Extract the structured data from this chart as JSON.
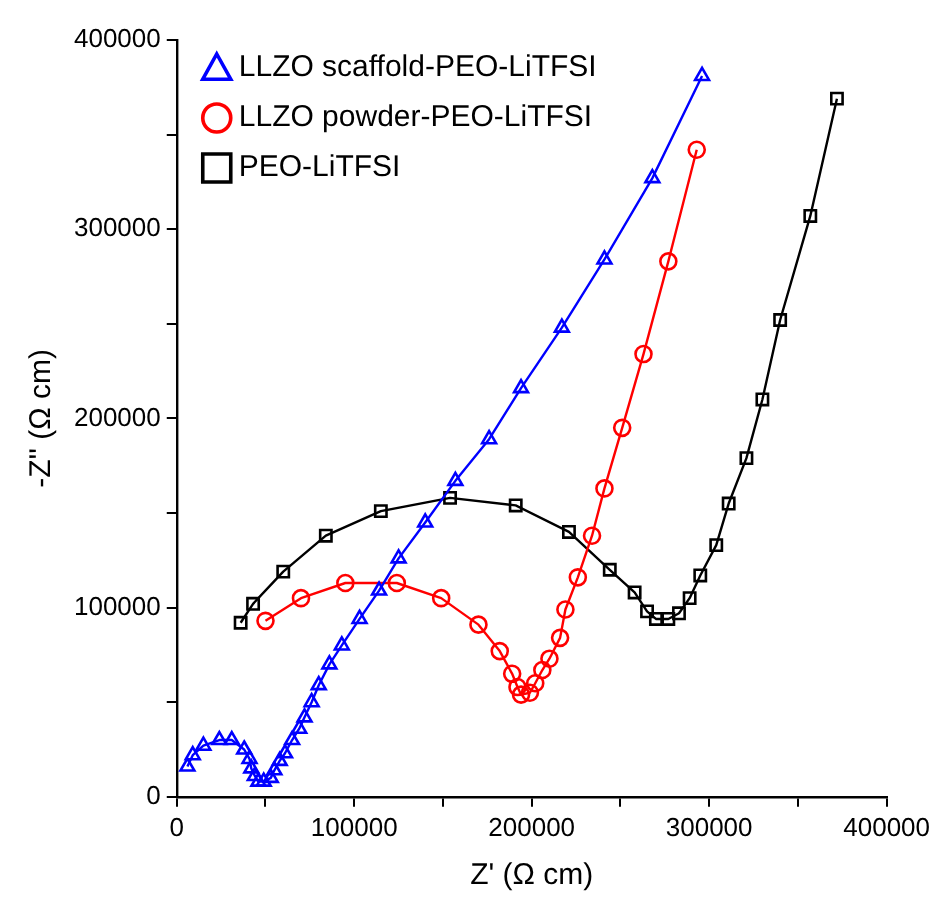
{
  "chart_data": {
    "type": "line",
    "xlabel": "Z' (Ω cm)",
    "ylabel": "-Z'' (Ω cm)",
    "xlim": [
      0,
      400000
    ],
    "ylim": [
      0,
      400000
    ],
    "xticks": [
      0,
      {
        "value": 50000,
        "label": null
      },
      100000,
      {
        "value": 150000,
        "label": null
      },
      200000,
      {
        "value": 250000,
        "label": null
      },
      300000,
      {
        "value": 350000,
        "label": null
      },
      400000
    ],
    "yticks": [
      0,
      {
        "value": 50000,
        "label": null
      },
      100000,
      {
        "value": 150000,
        "label": null
      },
      200000,
      {
        "value": 250000,
        "label": null
      },
      300000,
      {
        "value": 350000,
        "label": null
      },
      400000
    ],
    "grid": false,
    "legend": "top left",
    "line_style": "solid",
    "series": [
      {
        "name": "LLZO scaffold-PEO-LiTFSI",
        "color": "#0000ff",
        "marker": "triangle",
        "x": [
          6000,
          9000,
          15000,
          24000,
          31000,
          38000,
          41000,
          42000,
          44000,
          46000,
          49000,
          53000,
          55000,
          58000,
          61000,
          65000,
          69000,
          72000,
          76000,
          80000,
          86000,
          93000,
          103000,
          114000,
          125000,
          140000,
          157000,
          176000,
          194000,
          217000,
          241000,
          268000,
          296000
        ],
        "values": [
          16000,
          22000,
          27000,
          30000,
          30000,
          25000,
          20000,
          15000,
          11000,
          8000,
          8000,
          10000,
          14000,
          19000,
          23000,
          30000,
          36000,
          42000,
          50000,
          59000,
          70000,
          80000,
          94000,
          109000,
          126000,
          145000,
          167000,
          189000,
          216000,
          248000,
          284000,
          327000,
          381000
        ]
      },
      {
        "name": "LLZO powder-PEO-LiTFSI",
        "color": "#ff0000",
        "marker": "circle",
        "x": [
          50000,
          70000,
          95000,
          124000,
          149000,
          170000,
          182000,
          189000,
          192000,
          194000,
          199000,
          202000,
          206000,
          210000,
          216000,
          219000,
          226000,
          234000,
          241000,
          251000,
          263000,
          277000,
          293000
        ],
        "values": [
          93000,
          105000,
          113000,
          113000,
          105000,
          91000,
          77000,
          65000,
          58000,
          54000,
          55000,
          60000,
          67000,
          73000,
          84000,
          99000,
          116000,
          138000,
          163000,
          195000,
          234000,
          283000,
          342000
        ]
      },
      {
        "name": "PEO-LiTFSI",
        "color": "#000000",
        "marker": "square",
        "x": [
          36000,
          43000,
          60000,
          84000,
          115000,
          154000,
          191000,
          221000,
          244000,
          258000,
          265000,
          270000,
          277000,
          283000,
          289000,
          295000,
          304000,
          311000,
          321000,
          330000,
          340000,
          357000,
          372000
        ],
        "values": [
          92000,
          102000,
          119000,
          138000,
          151000,
          158000,
          154000,
          140000,
          120000,
          108000,
          98000,
          94000,
          94000,
          97000,
          105000,
          117000,
          133000,
          155000,
          179000,
          210000,
          252000,
          307000,
          369000
        ]
      }
    ]
  }
}
